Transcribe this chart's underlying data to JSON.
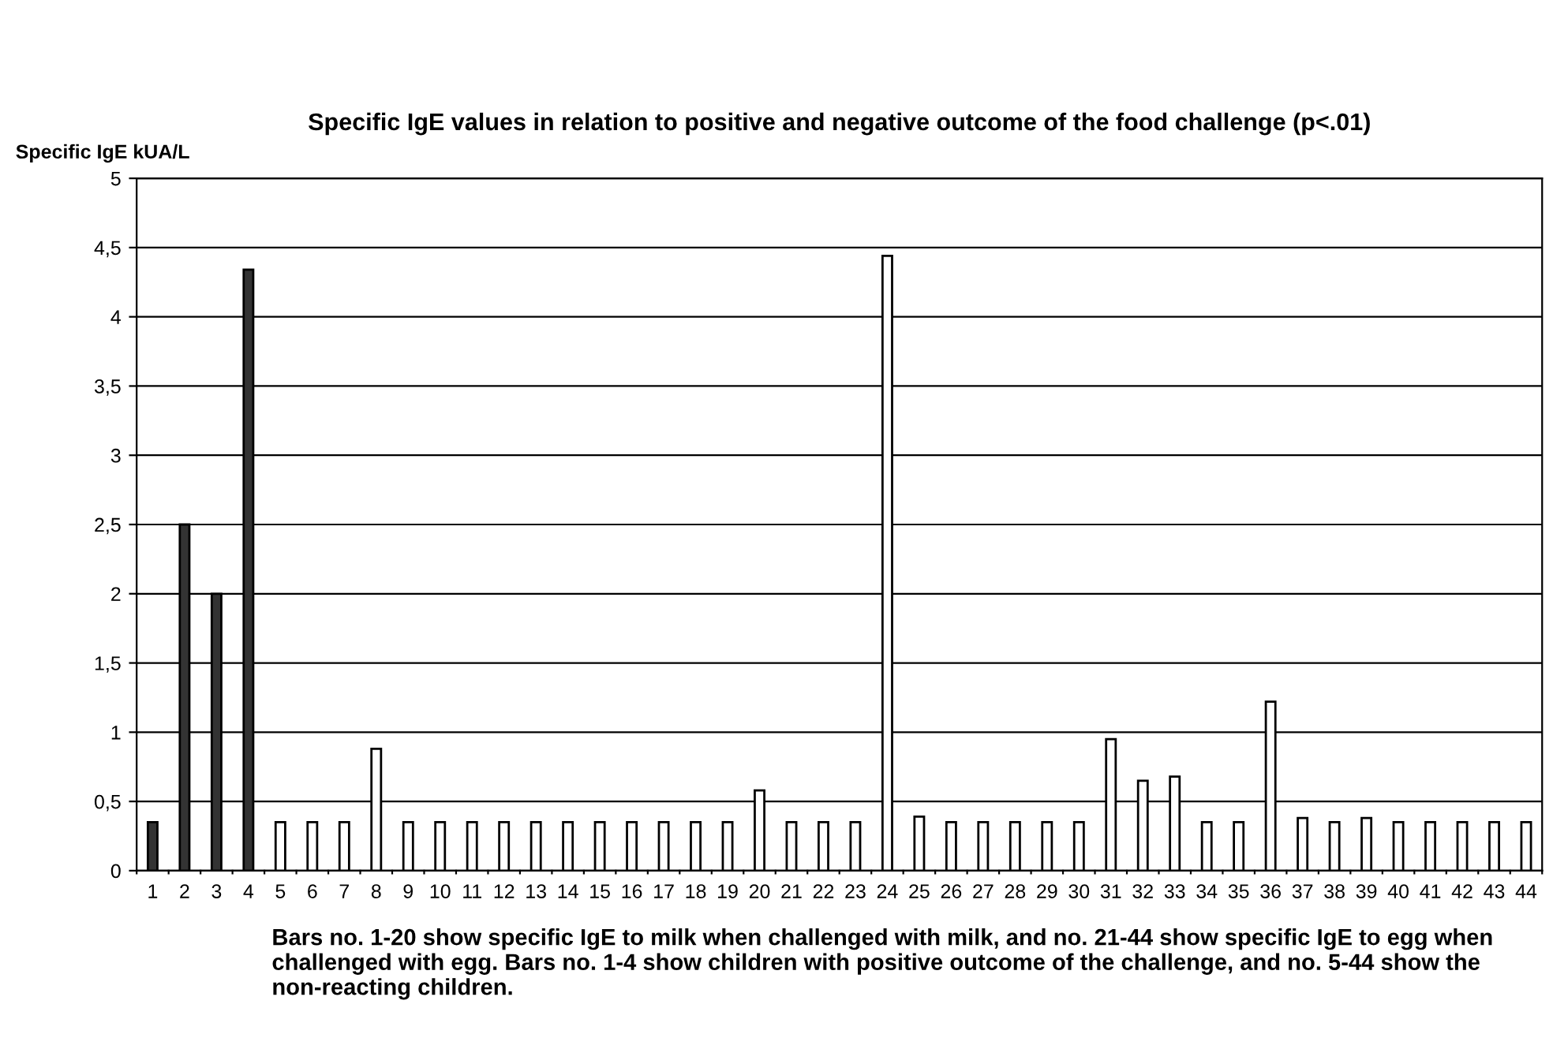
{
  "chart_data": {
    "type": "bar",
    "title": "Specific IgE values in relation to positive and negative outcome of the food challenge (p<.01)",
    "ylabel": "Specific IgE kUA/L",
    "categories": [
      "1",
      "2",
      "3",
      "4",
      "5",
      "6",
      "7",
      "8",
      "9",
      "10",
      "11",
      "12",
      "13",
      "14",
      "15",
      "16",
      "17",
      "18",
      "19",
      "20",
      "21",
      "22",
      "23",
      "24",
      "25",
      "26",
      "27",
      "28",
      "29",
      "30",
      "31",
      "32",
      "33",
      "34",
      "35",
      "36",
      "37",
      "38",
      "39",
      "40",
      "41",
      "42",
      "43",
      "44"
    ],
    "values": [
      0.35,
      2.5,
      2.0,
      4.34,
      0.35,
      0.35,
      0.35,
      0.88,
      0.35,
      0.35,
      0.35,
      0.35,
      0.35,
      0.35,
      0.35,
      0.35,
      0.35,
      0.35,
      0.35,
      0.58,
      0.35,
      0.35,
      0.35,
      4.44,
      0.39,
      0.35,
      0.35,
      0.35,
      0.35,
      0.35,
      0.95,
      0.65,
      0.68,
      0.35,
      0.35,
      1.22,
      0.38,
      0.35,
      0.38,
      0.35,
      0.35,
      0.35,
      0.35,
      0.35
    ],
    "colors": [
      "#333333",
      "#333333",
      "#333333",
      "#333333",
      "#ffffff",
      "#ffffff",
      "#ffffff",
      "#ffffff",
      "#ffffff",
      "#ffffff",
      "#ffffff",
      "#ffffff",
      "#ffffff",
      "#ffffff",
      "#ffffff",
      "#ffffff",
      "#ffffff",
      "#ffffff",
      "#ffffff",
      "#ffffff",
      "#ffffff",
      "#ffffff",
      "#ffffff",
      "#ffffff",
      "#ffffff",
      "#ffffff",
      "#ffffff",
      "#ffffff",
      "#ffffff",
      "#ffffff",
      "#ffffff",
      "#ffffff",
      "#ffffff",
      "#ffffff",
      "#ffffff",
      "#ffffff",
      "#ffffff",
      "#ffffff",
      "#ffffff",
      "#ffffff",
      "#ffffff",
      "#ffffff",
      "#ffffff",
      "#ffffff"
    ],
    "ylim": [
      0,
      5
    ],
    "yticks": [
      0,
      {
        "value": 0.5,
        "label": "0,5"
      },
      1,
      {
        "value": 1.5,
        "label": "1,5"
      },
      2,
      {
        "value": 2.5,
        "label": "2,5"
      },
      3,
      {
        "value": 3.5,
        "label": "3,5"
      },
      4,
      {
        "value": 4.5,
        "label": "4,5"
      },
      5
    ],
    "grid": "y",
    "annotations": [
      "Bars no. 1-20 show specific IgE to milk when challenged with milk, and no. 21-44 show specific IgE to egg when challenged with egg. Bars no. 1-4 show children with positive outcome of the challenge, and no. 5-44 show the non-reacting children."
    ]
  }
}
